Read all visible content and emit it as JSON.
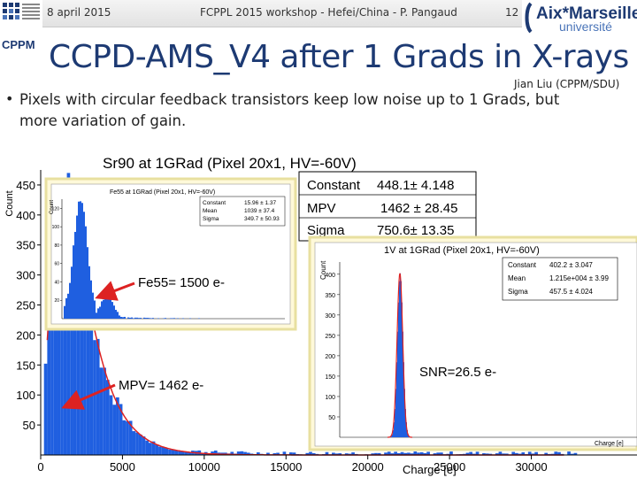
{
  "header": {
    "date": "8 april 2015",
    "workshop": "FCPPL 2015 workshop - Hefei/China - P. Pangaud",
    "page_number": "12",
    "logo_cppm": "CPPM",
    "logo_amu_top": "Aix*Marseille",
    "logo_amu_bottom": "université"
  },
  "slide": {
    "title": "CCPD-AMS_V4 after 1 Grads in X-rays",
    "author": "Jian Liu (CPPM/SDU)",
    "bullet_line1": "Pixels with circular feedback transistors keep low noise up to 1 Grads, but",
    "bullet_line2": "more variation of gain."
  },
  "chart_data": [
    {
      "type": "bar",
      "title": "Sr90 at 1GRad (Pixel 20x1, HV=-60V)",
      "xlabel": "Charge [e]",
      "ylabel": "Count",
      "xticks": [
        "0",
        "5000",
        "10000",
        "15000",
        "20000",
        "25000",
        "30000"
      ],
      "yticks": [
        "50",
        "100",
        "150",
        "200",
        "250",
        "300",
        "350",
        "400",
        "450"
      ],
      "xlim": [
        0,
        33000
      ],
      "ylim": [
        0,
        475
      ],
      "stats": [
        {
          "label": "Constant",
          "value": "448.1± 4.148"
        },
        {
          "label": "MPV",
          "value": "1462 ± 28.45"
        },
        {
          "label": "Sigma",
          "value": "750.6± 13.35"
        }
      ],
      "annotation": "MPV= 1462 e-"
    },
    {
      "type": "bar",
      "title": "Fe55 at 1GRad (Pixel 20x1, HV=-60V)",
      "ylabel": "Count",
      "yticks": [
        "120",
        "100",
        "80",
        "60",
        "40",
        "20"
      ],
      "stats": [
        {
          "label": "Constant",
          "value": "15.96 ± 1.37"
        },
        {
          "label": "Mean",
          "value": "1039 ± 37.4"
        },
        {
          "label": "Sigma",
          "value": "349.7 ± 50.93"
        }
      ],
      "annotation": "Fe55= 1500 e-"
    },
    {
      "type": "bar",
      "title": "1V at 1GRad (Pixel 20x1, HV=-60V)",
      "xlabel": "Charge [e]",
      "ylabel": "Count",
      "yticks": [
        "400",
        "350",
        "300",
        "250",
        "200",
        "150",
        "100",
        "50"
      ],
      "stats": [
        {
          "label": "Constant",
          "value": "402.2 ± 3.047"
        },
        {
          "label": "Mean",
          "value": "1.215e+004 ± 3.99"
        },
        {
          "label": "Sigma",
          "value": "457.5 ± 4.024"
        }
      ],
      "annotation": "SNR=26.5 e-"
    }
  ]
}
